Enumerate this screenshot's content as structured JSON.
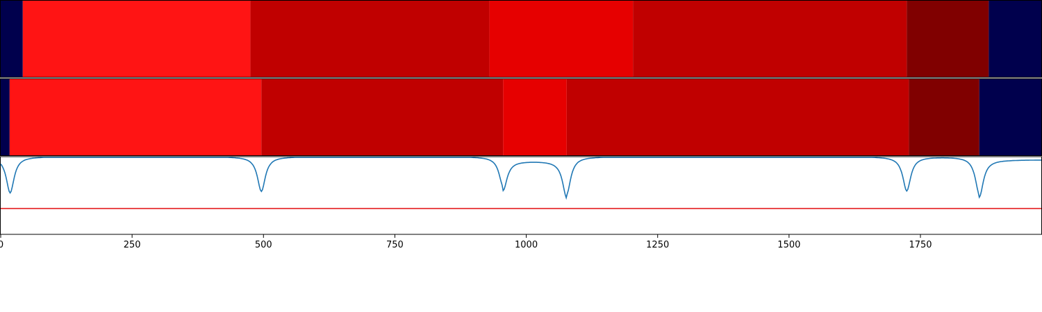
{
  "chart_data": [
    {
      "type": "heatmap",
      "panel": "track-1",
      "segments": [
        {
          "start": -2,
          "end": 42,
          "color": "#00004d"
        },
        {
          "start": 42,
          "end": 475,
          "color": "#ff1414"
        },
        {
          "start": 475,
          "end": 930,
          "color": "#c00000"
        },
        {
          "start": 930,
          "end": 1203,
          "color": "#e60000"
        },
        {
          "start": 1203,
          "end": 1724,
          "color": "#c00000"
        },
        {
          "start": 1724,
          "end": 1880,
          "color": "#800000"
        },
        {
          "start": 1880,
          "end": 1980,
          "color": "#00004d"
        }
      ]
    },
    {
      "type": "heatmap",
      "panel": "track-2",
      "segments": [
        {
          "start": -2,
          "end": 17,
          "color": "#00004d"
        },
        {
          "start": 17,
          "end": 496,
          "color": "#ff1414"
        },
        {
          "start": 496,
          "end": 956,
          "color": "#c00000"
        },
        {
          "start": 956,
          "end": 1077,
          "color": "#e60000"
        },
        {
          "start": 1077,
          "end": 1728,
          "color": "#c00000"
        },
        {
          "start": 1728,
          "end": 1862,
          "color": "#800000"
        },
        {
          "start": 1862,
          "end": 1980,
          "color": "#00004d"
        }
      ]
    },
    {
      "type": "line",
      "panel": "signal",
      "x_ticks": [
        0,
        250,
        500,
        750,
        1000,
        1250,
        1500,
        1750
      ],
      "x_tick_labels": [
        "0",
        "250",
        "500",
        "750",
        "1000",
        "1250",
        "1500",
        "1750"
      ],
      "xlim": [
        0,
        1980
      ],
      "ylim": [
        -1.5,
        0.0
      ],
      "threshold": 1.0,
      "threshold_color": "#e41a1c",
      "line_color": "#1f77b4",
      "baseline": 0.0,
      "dips": [
        {
          "x": 18,
          "depth": 0.7
        },
        {
          "x": 496,
          "depth": 0.67
        },
        {
          "x": 956,
          "depth": 0.57
        },
        {
          "x": 1077,
          "depth": 0.72
        },
        {
          "x": 1724,
          "depth": 0.66
        },
        {
          "x": 1862,
          "depth": 0.72
        }
      ],
      "plateaus": [
        {
          "start": 956,
          "end": 1077,
          "level": 0.08
        },
        {
          "start": 1862,
          "end": 1980,
          "level": 0.06
        }
      ],
      "xlabel": "",
      "ylabel": ""
    }
  ]
}
